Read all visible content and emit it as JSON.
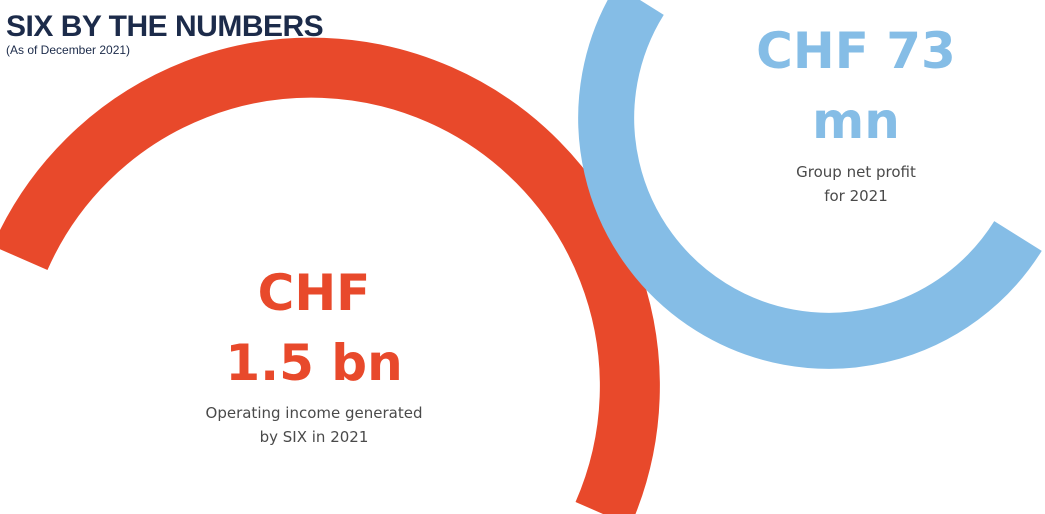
{
  "header": {
    "title": "SIX BY THE NUMBERS",
    "subtitle": "(As of December 2021)"
  },
  "stats": [
    {
      "value_lines": [
        "CHF",
        "1.5 bn"
      ],
      "description_lines": [
        "Operating income generated",
        "by SIX in 2021"
      ]
    },
    {
      "value_lines": [
        "CHF 73",
        "mn"
      ],
      "description_lines": [
        "Group net profit",
        "for 2021"
      ]
    }
  ]
}
